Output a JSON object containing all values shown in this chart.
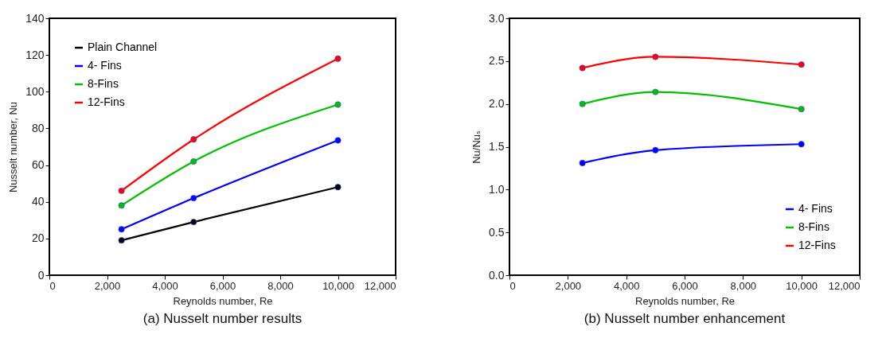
{
  "chart_data": [
    {
      "type": "line",
      "title": "(a)   Nusselt number results",
      "xlabel": "Reynolds number, Re",
      "ylabel": "Nusselt number, Nu",
      "x": [
        2500,
        5000,
        10000
      ],
      "series": [
        {
          "name": "Plain Channel",
          "color": "#000000",
          "values": [
            19,
            29,
            48
          ]
        },
        {
          "name": "4- Fins",
          "color": "#0000ff",
          "values": [
            25,
            42,
            73.5
          ]
        },
        {
          "name": "8-Fins",
          "color": "#00c000",
          "values": [
            38,
            62,
            93
          ]
        },
        {
          "name": "12-Fins",
          "color": "#ff0000",
          "values": [
            46,
            74,
            118
          ]
        }
      ],
      "xlim": [
        0,
        12000
      ],
      "xticks": [
        0,
        {
          "value": 2000,
          "label": "2,000"
        },
        {
          "value": 4000,
          "label": "4,000"
        },
        {
          "value": 6000,
          "label": "6,000"
        },
        {
          "value": 8000,
          "label": "8,000"
        },
        {
          "value": 10000,
          "label": "10,000"
        },
        {
          "value": 12000,
          "label": "12,000"
        }
      ],
      "ylim": [
        0,
        140
      ],
      "yticks": [
        0,
        20,
        40,
        60,
        80,
        100,
        120,
        140
      ],
      "legend": "top left",
      "marker": "circle",
      "line_style": "solid",
      "grid": false
    },
    {
      "type": "line",
      "title": "(b)   Nusselt number enhancement",
      "xlabel": "Reynolds number, Re",
      "ylabel": "Nu/Nuₛ",
      "x": [
        2500,
        5000,
        10000
      ],
      "series": [
        {
          "name": "4- Fins",
          "color": "#0000ff",
          "values": [
            1.31,
            1.46,
            1.53
          ]
        },
        {
          "name": "8-Fins",
          "color": "#00c000",
          "values": [
            2.0,
            2.14,
            1.94
          ]
        },
        {
          "name": "12-Fins",
          "color": "#ff0000",
          "values": [
            2.42,
            2.55,
            2.46
          ]
        }
      ],
      "xlim": [
        0,
        12000
      ],
      "xticks": [
        0,
        {
          "value": 2000,
          "label": "2,000"
        },
        {
          "value": 4000,
          "label": "4,000"
        },
        {
          "value": 6000,
          "label": "6,000"
        },
        {
          "value": 8000,
          "label": "8,000"
        },
        {
          "value": 10000,
          "label": "10,000"
        },
        {
          "value": 12000,
          "label": "12,000"
        }
      ],
      "ylim": [
        0,
        3
      ],
      "yticks": [
        {
          "value": 0,
          "label": "0.0"
        },
        {
          "value": 0.5,
          "label": "0.5"
        },
        {
          "value": 1,
          "label": "1.0"
        },
        {
          "value": 1.5,
          "label": "1.5"
        },
        {
          "value": 2,
          "label": "2.0"
        },
        {
          "value": 2.5,
          "label": "2.5"
        },
        {
          "value": 3,
          "label": "3.0"
        }
      ],
      "legend": "bottom right",
      "marker": "circle",
      "line_style": "solid",
      "grid": false
    }
  ]
}
